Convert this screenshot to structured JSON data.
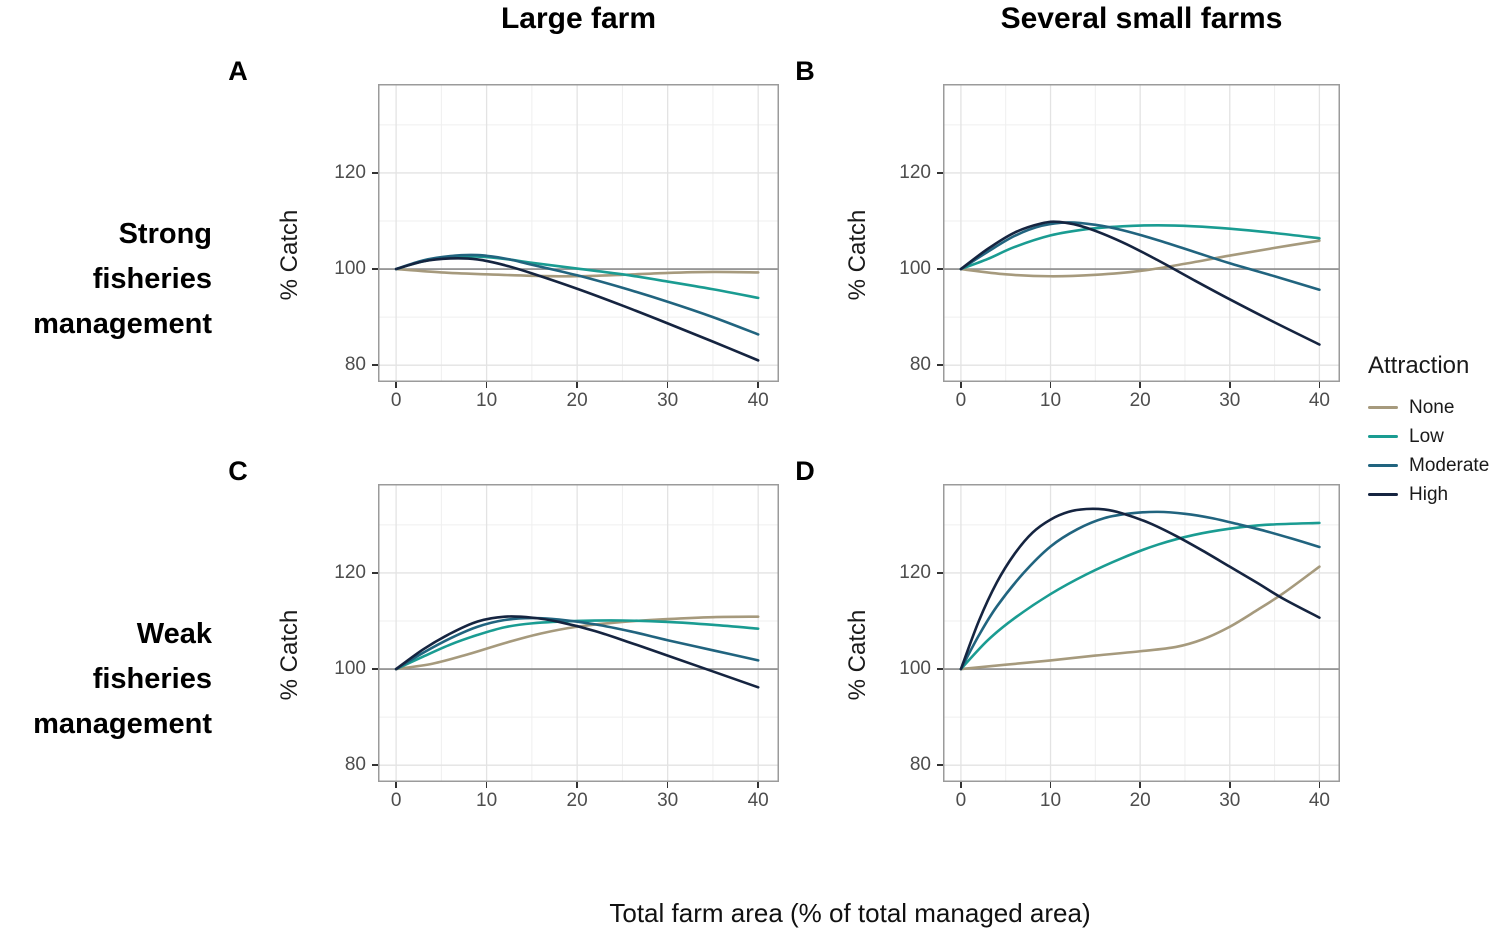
{
  "chart_data": {
    "type": "line",
    "xlabel": "Total farm area (% of total managed area)",
    "ylabel": "% Catch",
    "columns": [
      "Large farm",
      "Several small farms"
    ],
    "rows": [
      "Strong\nfisheries\nmanagement",
      "Weak\nfisheries\nmanagement"
    ],
    "x_ticks": [
      0,
      10,
      20,
      30,
      40
    ],
    "y_ticks": [
      80,
      100,
      120
    ],
    "x_minor": [
      5,
      15,
      25,
      35
    ],
    "y_minor": [
      90,
      110,
      130
    ],
    "x_domain": [
      -2,
      42.3
    ],
    "y_domain": [
      76.5,
      138.5
    ],
    "reference_line_y": 100,
    "grid": true,
    "legend": {
      "title": "Attraction",
      "position": "right",
      "entries": [
        "None",
        "Low",
        "Moderate",
        "High"
      ]
    },
    "colors": {
      "none": "#a69a7d",
      "low": "#1a9c92",
      "moderate": "#21647f",
      "high": "#152440",
      "grid_major": "#e3e3e3",
      "grid_minor": "#efefef",
      "ref_line": "#8a8a8a",
      "panel_border": "#9b9b9b",
      "tick_mark": "#333333"
    },
    "panels": [
      {
        "id": "A",
        "column": "Large farm",
        "row": "Strong fisheries management",
        "series": [
          {
            "key": "none",
            "name": "None",
            "points": [
              [
                0,
                100
              ],
              [
                5,
                99.3
              ],
              [
                10,
                98.9
              ],
              [
                15,
                98.6
              ],
              [
                20,
                98.5
              ],
              [
                25,
                98.8
              ],
              [
                30,
                99.2
              ],
              [
                35,
                99.4
              ],
              [
                40,
                99.3
              ]
            ]
          },
          {
            "key": "low",
            "name": "Low",
            "points": [
              [
                0,
                100
              ],
              [
                3,
                101.6
              ],
              [
                6,
                102.4
              ],
              [
                9,
                102.6
              ],
              [
                12,
                102.1
              ],
              [
                15,
                101.3
              ],
              [
                20,
                100.1
              ],
              [
                25,
                98.9
              ],
              [
                30,
                97.4
              ],
              [
                35,
                95.8
              ],
              [
                40,
                94
              ]
            ]
          },
          {
            "key": "moderate",
            "name": "Moderate",
            "points": [
              [
                0,
                100
              ],
              [
                3,
                101.8
              ],
              [
                6,
                102.7
              ],
              [
                9,
                102.9
              ],
              [
                12,
                102.2
              ],
              [
                15,
                100.9
              ],
              [
                20,
                98.7
              ],
              [
                25,
                96.1
              ],
              [
                30,
                93.2
              ],
              [
                35,
                90
              ],
              [
                40,
                86.4
              ]
            ]
          },
          {
            "key": "high",
            "name": "High",
            "points": [
              [
                0,
                100
              ],
              [
                3,
                101.6
              ],
              [
                6,
                102.2
              ],
              [
                9,
                102
              ],
              [
                12,
                100.8
              ],
              [
                15,
                99.1
              ],
              [
                20,
                95.9
              ],
              [
                25,
                92.4
              ],
              [
                30,
                88.7
              ],
              [
                35,
                84.9
              ],
              [
                40,
                81
              ]
            ]
          }
        ]
      },
      {
        "id": "B",
        "column": "Several small farms",
        "row": "Strong fisheries management",
        "series": [
          {
            "key": "none",
            "name": "None",
            "points": [
              [
                0,
                100
              ],
              [
                5,
                98.9
              ],
              [
                10,
                98.5
              ],
              [
                15,
                98.8
              ],
              [
                20,
                99.6
              ],
              [
                25,
                101.1
              ],
              [
                30,
                102.8
              ],
              [
                35,
                104.4
              ],
              [
                40,
                105.9
              ]
            ]
          },
          {
            "key": "low",
            "name": "Low",
            "points": [
              [
                0,
                100
              ],
              [
                3,
                102.1
              ],
              [
                6,
                104.6
              ],
              [
                10,
                107
              ],
              [
                14,
                108.3
              ],
              [
                18,
                108.9
              ],
              [
                22,
                109.1
              ],
              [
                26,
                108.9
              ],
              [
                30,
                108.4
              ],
              [
                35,
                107.5
              ],
              [
                40,
                106.4
              ]
            ]
          },
          {
            "key": "moderate",
            "name": "Moderate",
            "points": [
              [
                0,
                100
              ],
              [
                3,
                103.6
              ],
              [
                6,
                106.9
              ],
              [
                9,
                109
              ],
              [
                12,
                109.7
              ],
              [
                15,
                109.2
              ],
              [
                18,
                108.1
              ],
              [
                22,
                106
              ],
              [
                26,
                103.6
              ],
              [
                30,
                101.2
              ],
              [
                35,
                98.5
              ],
              [
                40,
                95.7
              ]
            ]
          },
          {
            "key": "high",
            "name": "High",
            "points": [
              [
                0,
                100
              ],
              [
                3,
                104.2
              ],
              [
                6,
                107.6
              ],
              [
                9,
                109.5
              ],
              [
                11,
                109.8
              ],
              [
                14,
                108.6
              ],
              [
                18,
                105.6
              ],
              [
                22,
                101.8
              ],
              [
                26,
                97.7
              ],
              [
                30,
                93.7
              ],
              [
                35,
                88.9
              ],
              [
                40,
                84.3
              ]
            ]
          }
        ]
      },
      {
        "id": "C",
        "column": "Large farm",
        "row": "Weak fisheries management",
        "series": [
          {
            "key": "none",
            "name": "None",
            "points": [
              [
                0,
                100
              ],
              [
                4,
                101.1
              ],
              [
                8,
                103.1
              ],
              [
                12,
                105.4
              ],
              [
                16,
                107.4
              ],
              [
                20,
                108.8
              ],
              [
                25,
                109.8
              ],
              [
                30,
                110.4
              ],
              [
                35,
                110.8
              ],
              [
                40,
                110.9
              ]
            ]
          },
          {
            "key": "low",
            "name": "Low",
            "points": [
              [
                0,
                100
              ],
              [
                3,
                102.6
              ],
              [
                6,
                105.1
              ],
              [
                9,
                107.1
              ],
              [
                12,
                108.7
              ],
              [
                15,
                109.5
              ],
              [
                20,
                110
              ],
              [
                25,
                110.1
              ],
              [
                30,
                109.8
              ],
              [
                35,
                109.2
              ],
              [
                40,
                108.4
              ]
            ]
          },
          {
            "key": "moderate",
            "name": "Moderate",
            "points": [
              [
                0,
                100
              ],
              [
                3,
                103.4
              ],
              [
                6,
                106.4
              ],
              [
                9,
                108.8
              ],
              [
                12,
                110.2
              ],
              [
                15,
                110.6
              ],
              [
                18,
                110.3
              ],
              [
                22,
                109.3
              ],
              [
                26,
                107.8
              ],
              [
                30,
                106
              ],
              [
                35,
                103.9
              ],
              [
                40,
                101.8
              ]
            ]
          },
          {
            "key": "high",
            "name": "High",
            "points": [
              [
                0,
                100
              ],
              [
                3,
                104.1
              ],
              [
                6,
                107.4
              ],
              [
                9,
                109.9
              ],
              [
                12,
                110.9
              ],
              [
                15,
                110.7
              ],
              [
                18,
                109.8
              ],
              [
                22,
                107.9
              ],
              [
                26,
                105.4
              ],
              [
                30,
                102.8
              ],
              [
                35,
                99.5
              ],
              [
                40,
                96.2
              ]
            ]
          }
        ]
      },
      {
        "id": "D",
        "column": "Several small farms",
        "row": "Weak fisheries management",
        "series": [
          {
            "key": "none",
            "name": "None",
            "points": [
              [
                0,
                100
              ],
              [
                5,
                100.9
              ],
              [
                10,
                101.8
              ],
              [
                15,
                102.8
              ],
              [
                20,
                103.7
              ],
              [
                24,
                104.6
              ],
              [
                27,
                106.2
              ],
              [
                30,
                108.8
              ],
              [
                33,
                112.2
              ],
              [
                36,
                115.8
              ],
              [
                40,
                121.3
              ]
            ]
          },
          {
            "key": "low",
            "name": "Low",
            "points": [
              [
                0,
                100
              ],
              [
                3,
                106
              ],
              [
                6,
                110.6
              ],
              [
                10,
                115.6
              ],
              [
                14,
                119.7
              ],
              [
                18,
                123.1
              ],
              [
                22,
                125.9
              ],
              [
                26,
                127.9
              ],
              [
                30,
                129.2
              ],
              [
                34,
                130
              ],
              [
                40,
                130.4
              ]
            ]
          },
          {
            "key": "moderate",
            "name": "Moderate",
            "points": [
              [
                0,
                100
              ],
              [
                2,
                107
              ],
              [
                4,
                113
              ],
              [
                7,
                120
              ],
              [
                10,
                125.5
              ],
              [
                13,
                129.1
              ],
              [
                16,
                131.4
              ],
              [
                19,
                132.4
              ],
              [
                22,
                132.7
              ],
              [
                25,
                132.3
              ],
              [
                28,
                131.4
              ],
              [
                31,
                130.1
              ],
              [
                34,
                128.7
              ],
              [
                37,
                127.1
              ],
              [
                40,
                125.4
              ]
            ]
          },
          {
            "key": "high",
            "name": "High",
            "points": [
              [
                0,
                100
              ],
              [
                2,
                110
              ],
              [
                4,
                118
              ],
              [
                6,
                124
              ],
              [
                8,
                128.4
              ],
              [
                10,
                131.1
              ],
              [
                12,
                132.7
              ],
              [
                14,
                133.3
              ],
              [
                16,
                133.2
              ],
              [
                18,
                132.4
              ],
              [
                21,
                130.4
              ],
              [
                24,
                127.7
              ],
              [
                27,
                124.6
              ],
              [
                30,
                121.3
              ],
              [
                33,
                118
              ],
              [
                36,
                114.6
              ],
              [
                40,
                110.7
              ]
            ]
          }
        ]
      }
    ]
  }
}
